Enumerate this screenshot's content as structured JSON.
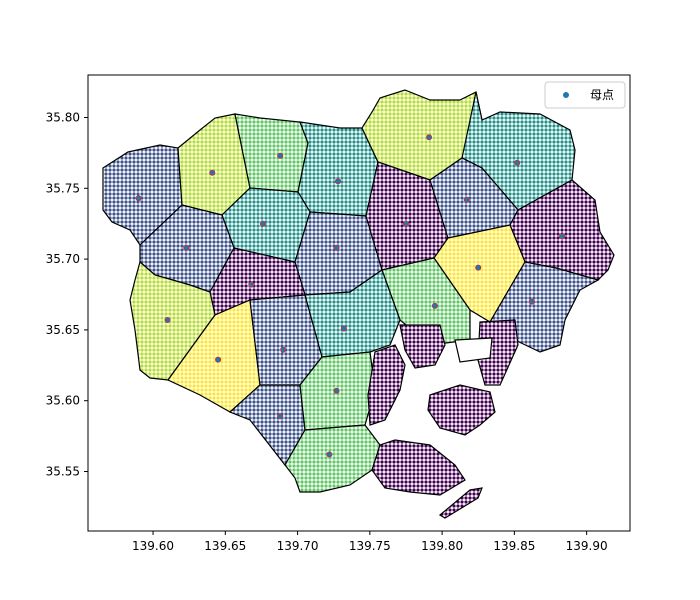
{
  "chart_data": {
    "type": "scatter",
    "title": "",
    "xlabel": "",
    "ylabel": "",
    "xlim": [
      139.555,
      139.93
    ],
    "ylim": [
      35.508,
      35.83
    ],
    "xticks": [
      "139.60",
      "139.65",
      "139.70",
      "139.75",
      "139.80",
      "139.85",
      "139.90"
    ],
    "yticks": [
      "35.55",
      "35.60",
      "35.65",
      "35.70",
      "35.75",
      "35.80"
    ],
    "grid": false,
    "legend": {
      "position": "top-right",
      "entries": [
        "母点"
      ]
    },
    "series": [
      {
        "name": "母点",
        "color": "#1f77b4",
        "points": [
          [
            139.59,
            35.743
          ],
          [
            139.641,
            35.761
          ],
          [
            139.688,
            35.773
          ],
          [
            139.728,
            35.755
          ],
          [
            139.791,
            35.786
          ],
          [
            139.852,
            35.768
          ],
          [
            139.676,
            35.725
          ],
          [
            139.623,
            35.708
          ],
          [
            139.727,
            35.708
          ],
          [
            139.775,
            35.725
          ],
          [
            139.817,
            35.742
          ],
          [
            139.883,
            35.716
          ],
          [
            139.668,
            35.682
          ],
          [
            139.825,
            35.694
          ],
          [
            139.795,
            35.667
          ],
          [
            139.862,
            35.67
          ],
          [
            139.61,
            35.657
          ],
          [
            139.645,
            35.629
          ],
          [
            139.69,
            35.636
          ],
          [
            139.732,
            35.651
          ],
          [
            139.727,
            35.607
          ],
          [
            139.688,
            35.589
          ],
          [
            139.722,
            35.562
          ]
        ]
      }
    ],
    "region_colors": {
      "purple": "#440154",
      "indigo": "#3b528b",
      "teal": "#21918c",
      "green": "#5ec962",
      "yellow": "#fde725",
      "lime": "#b5de2b"
    }
  }
}
